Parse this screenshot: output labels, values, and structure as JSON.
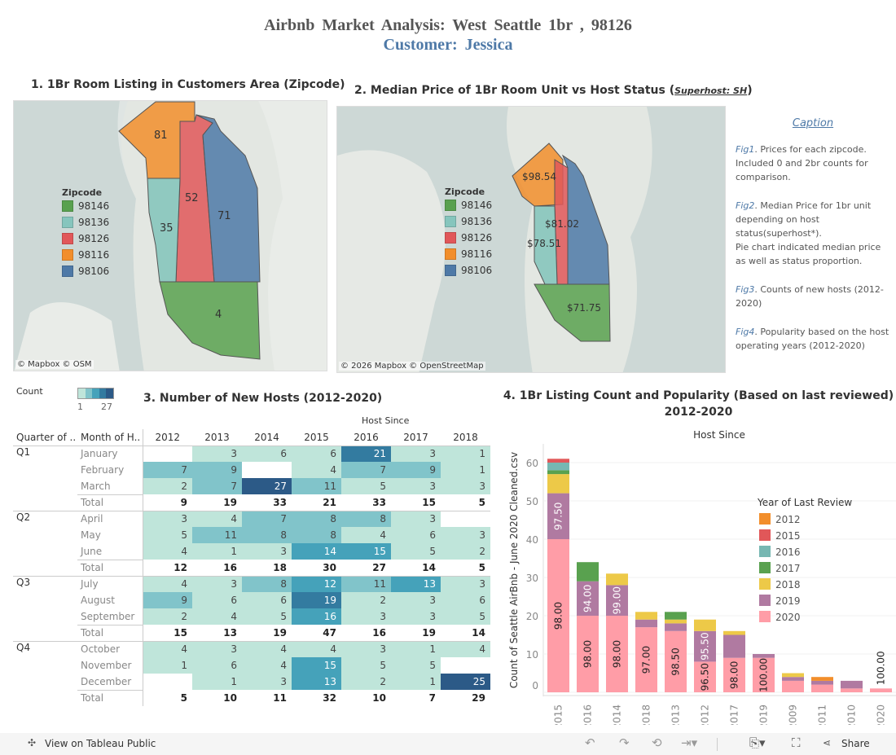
{
  "header": {
    "title": "Airbnb Market Analysis:  West Seattle 1br , 98126",
    "subtitle": "Customer:  Jessica"
  },
  "fig1": {
    "title": "1. 1Br Room Listing in Customers Area (Zipcode)",
    "legend_title": "Zipcode",
    "legend": [
      {
        "zip": "98146",
        "color": "#59a14f"
      },
      {
        "zip": "98136",
        "color": "#86c5bd"
      },
      {
        "zip": "98126",
        "color": "#e15759"
      },
      {
        "zip": "98116",
        "color": "#f28e2b"
      },
      {
        "zip": "98106",
        "color": "#4e79a7"
      }
    ],
    "labels": {
      "98116": "81",
      "98126": "52",
      "98106": "71",
      "98136": "35",
      "98146": "4"
    },
    "attribution": "© Mapbox  © OSM"
  },
  "fig2": {
    "title_prefix": "2. Median Price of 1Br Room Unit vs Host Status (",
    "title_link": "Superhost: SH",
    "title_suffix": ")",
    "legend_title": "Zipcode",
    "labels": {
      "98116": "$98.54",
      "98126": "$81.02",
      "98136": "$78.51",
      "98146": "$71.75"
    },
    "attribution": "© 2026 Mapbox  © OpenStreetMap"
  },
  "caption": {
    "title": "Caption",
    "items": [
      {
        "fig": "Fig1",
        "text": ". Prices for each zipcode. Included 0 and 2br counts for comparison."
      },
      {
        "fig": "Fig2",
        "text": ". Median Price for 1br unit depending on host status(superhost*).",
        "extra": "Pie chart indicated median price as well as status proportion."
      },
      {
        "fig": "Fig3",
        "text": ". Counts of new hosts (2012-2020)"
      },
      {
        "fig": "Fig4",
        "text": ". Popularity based on the host operating years (2012-2020)"
      }
    ]
  },
  "fig3": {
    "title": "3. Number of New Hosts (2012-2020)",
    "count_legend": {
      "label": "Count",
      "min": "1",
      "max": "27"
    },
    "col_group": "Host Since",
    "row_headers": [
      "Quarter of ..",
      "Month of H.."
    ],
    "years": [
      "2012",
      "2013",
      "2014",
      "2015",
      "2016",
      "2017",
      "2018"
    ],
    "quarters": [
      {
        "q": "Q1",
        "rows": [
          {
            "m": "January",
            "v": [
              null,
              3,
              6,
              6,
              21,
              3,
              1
            ]
          },
          {
            "m": "February",
            "v": [
              7,
              9,
              null,
              4,
              7,
              9,
              1
            ]
          },
          {
            "m": "March",
            "v": [
              2,
              7,
              27,
              11,
              5,
              3,
              3
            ]
          }
        ],
        "total": [
          9,
          19,
          33,
          21,
          33,
          15,
          5
        ]
      },
      {
        "q": "Q2",
        "rows": [
          {
            "m": "April",
            "v": [
              3,
              4,
              7,
              8,
              8,
              3,
              null
            ]
          },
          {
            "m": "May",
            "v": [
              5,
              11,
              8,
              8,
              4,
              6,
              3
            ]
          },
          {
            "m": "June",
            "v": [
              4,
              1,
              3,
              14,
              15,
              5,
              2
            ]
          }
        ],
        "total": [
          12,
          16,
          18,
          30,
          27,
          14,
          5
        ]
      },
      {
        "q": "Q3",
        "rows": [
          {
            "m": "July",
            "v": [
              4,
              3,
              8,
              12,
              11,
              13,
              3
            ]
          },
          {
            "m": "August",
            "v": [
              9,
              6,
              6,
              19,
              2,
              3,
              6
            ]
          },
          {
            "m": "September",
            "v": [
              2,
              4,
              5,
              16,
              3,
              3,
              5
            ]
          }
        ],
        "total": [
          15,
          13,
          19,
          47,
          16,
          19,
          14
        ]
      },
      {
        "q": "Q4",
        "rows": [
          {
            "m": "October",
            "v": [
              4,
              3,
              4,
              4,
              3,
              1,
              4
            ]
          },
          {
            "m": "November",
            "v": [
              1,
              6,
              4,
              15,
              5,
              5,
              null
            ]
          },
          {
            "m": "December",
            "v": [
              null,
              1,
              3,
              13,
              2,
              1,
              25
            ]
          }
        ],
        "total": [
          5,
          10,
          11,
          32,
          10,
          7,
          29
        ]
      }
    ],
    "total_label": "Total"
  },
  "chart_data": {
    "type": "bar",
    "stacked": true,
    "title": "4. 1Br Listing Count  and Popularity  (Based on last reviewed) 2012-2020",
    "xlabel": "Host Since",
    "ylabel": "Count of Seattle AirBnb - June 2020 Cleaned.csv",
    "ylim": [
      0,
      65
    ],
    "yticks": [
      0,
      10,
      20,
      30,
      40,
      50,
      60
    ],
    "legend_title": "Year of Last Review",
    "legend_position": "right",
    "categories": [
      "2015",
      "2016",
      "2014",
      "2018",
      "2013",
      "2012",
      "2017",
      "2019",
      "2009",
      "2011",
      "2010",
      "2020"
    ],
    "series": [
      {
        "name": "2020",
        "color": "#ff9da7",
        "values": [
          40,
          20,
          20,
          17,
          16,
          8,
          9,
          9,
          3,
          2,
          1,
          1
        ],
        "labels": [
          "98.00",
          "98.00",
          "98.00",
          "97.00",
          "98.50",
          "96.50",
          "98.00",
          "100.00",
          "",
          "",
          "",
          "100.00"
        ]
      },
      {
        "name": "2019",
        "color": "#b07aa1",
        "values": [
          12,
          9,
          8,
          2,
          2,
          8,
          6,
          1,
          1,
          1,
          2,
          0
        ],
        "labels": [
          "97.50",
          "94.00",
          "99.00",
          "",
          "",
          "95.50",
          "",
          "",
          "",
          "",
          "",
          ""
        ]
      },
      {
        "name": "2018",
        "color": "#edc948",
        "values": [
          5,
          0,
          3,
          2,
          1,
          3,
          1,
          0,
          1,
          0,
          0,
          0
        ]
      },
      {
        "name": "2017",
        "color": "#59a14f",
        "values": [
          1,
          5,
          0,
          0,
          2,
          0,
          0,
          0,
          0,
          0,
          0,
          0
        ]
      },
      {
        "name": "2016",
        "color": "#76b7b2",
        "values": [
          2,
          0,
          0,
          0,
          0,
          0,
          0,
          0,
          0,
          0,
          0,
          0
        ]
      },
      {
        "name": "2015",
        "color": "#e15759",
        "values": [
          1,
          0,
          0,
          0,
          0,
          0,
          0,
          0,
          0,
          0,
          0,
          0
        ]
      },
      {
        "name": "2012",
        "color": "#f28e2b",
        "values": [
          0,
          0,
          0,
          0,
          0,
          0,
          0,
          0,
          0,
          1,
          0,
          0
        ]
      }
    ],
    "legend_order": [
      "2012",
      "2015",
      "2016",
      "2017",
      "2018",
      "2019",
      "2020"
    ]
  },
  "footer": {
    "view_label": "View on Tableau Public",
    "share_label": "Share"
  }
}
